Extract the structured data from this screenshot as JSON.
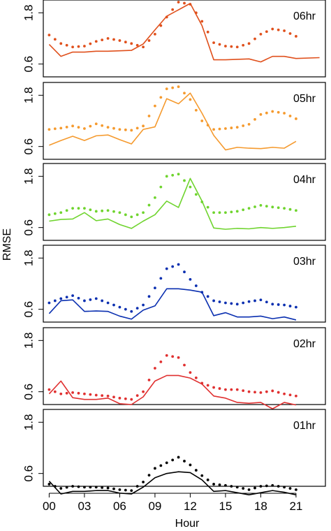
{
  "chart_data": {
    "type": "line",
    "xlabel": "Hour",
    "ylabel": "RMSE",
    "x_tick_labels": [
      "00",
      "03",
      "06",
      "09",
      "12",
      "15",
      "18",
      "21"
    ],
    "x_tick_values": [
      0,
      3,
      6,
      9,
      12,
      15,
      18,
      21
    ],
    "y_tick_labels": [
      "0.6",
      "1.8"
    ],
    "y_tick_values": [
      0.6,
      1.8
    ],
    "ylim": [
      0.3,
      2.1
    ],
    "xlim": [
      -0.5,
      23.5
    ],
    "x": [
      0,
      1,
      2,
      3,
      4,
      5,
      6,
      7,
      8,
      9,
      10,
      11,
      12,
      13,
      14,
      15,
      16,
      17,
      18,
      19,
      20,
      21,
      22,
      23
    ],
    "panels": [
      {
        "label": "06hr",
        "color": "#e0501c",
        "solid": [
          1.06,
          0.78,
          0.88,
          0.88,
          0.9,
          0.9,
          0.91,
          0.92,
          1.07,
          1.4,
          1.72,
          2.02,
          1.5,
          0.7,
          0.7,
          0.71,
          0.72,
          0.65,
          0.78,
          0.78,
          0.73,
          0.75
        ],
        "solid_x": [
          0,
          1,
          2,
          3,
          4,
          5,
          6,
          7,
          8,
          9,
          10,
          12,
          13,
          14,
          15,
          16,
          17,
          18,
          19,
          20,
          21,
          23
        ],
        "dotted": [
          1.28,
          1.08,
          1.0,
          1.02,
          1.13,
          1.2,
          1.15,
          1.08,
          1.0,
          1.3,
          1.7,
          2.05,
          2.0,
          1.6,
          1.1,
          1.02,
          1.0,
          1.08,
          1.3,
          1.42,
          1.38,
          1.25
        ]
      },
      {
        "label": "05hr",
        "color": "#f59a2e",
        "solid": [
          0.63,
          0.74,
          0.84,
          0.74,
          0.85,
          0.87,
          0.76,
          0.66,
          1.0,
          1.06,
          1.72,
          1.6,
          1.85,
          1.38,
          0.86,
          0.52,
          0.58,
          0.56,
          0.55,
          0.58,
          0.56,
          0.72
        ],
        "solid_x": [
          0,
          1,
          2,
          3,
          4,
          5,
          6,
          7,
          8,
          9,
          10,
          11,
          12,
          13,
          14,
          15,
          16,
          17,
          18,
          19,
          20,
          21
        ],
        "dotted": [
          1.0,
          1.03,
          1.08,
          1.02,
          1.13,
          1.05,
          1.0,
          0.98,
          1.08,
          1.55,
          1.95,
          2.0,
          1.7,
          1.2,
          1.0,
          1.02,
          1.05,
          1.12,
          1.35,
          1.42,
          1.38,
          1.25
        ]
      },
      {
        "label": "04hr",
        "color": "#6fd42e",
        "solid": [
          0.75,
          0.79,
          0.8,
          0.95,
          0.76,
          0.8,
          0.67,
          0.58,
          0.75,
          0.9,
          1.22,
          1.07,
          1.75,
          1.22,
          0.59,
          0.56,
          0.58,
          0.57,
          0.6,
          0.58,
          0.6,
          0.63
        ],
        "solid_x": [
          0,
          1,
          2,
          3,
          4,
          5,
          6,
          7,
          8,
          9,
          10,
          11,
          12,
          13,
          14,
          15,
          16,
          17,
          18,
          19,
          20,
          21
        ],
        "dotted": [
          0.9,
          0.95,
          1.05,
          1.05,
          0.98,
          1.0,
          0.95,
          0.85,
          0.95,
          1.3,
          1.8,
          1.85,
          1.55,
          1.2,
          0.95,
          0.95,
          0.98,
          1.05,
          1.12,
          1.08,
          1.05,
          1.0
        ]
      },
      {
        "label": "03hr",
        "color": "#0a2fb0",
        "solid": [
          0.5,
          0.8,
          0.82,
          0.55,
          0.56,
          0.55,
          0.44,
          0.37,
          0.58,
          0.68,
          1.08,
          1.08,
          1.05,
          1.0,
          0.45,
          0.52,
          0.42,
          0.42,
          0.44,
          0.38,
          0.42,
          0.35
        ],
        "solid_x": [
          0,
          1,
          2,
          3,
          4,
          5,
          6,
          7,
          8,
          9,
          10,
          11,
          12,
          13,
          14,
          15,
          16,
          17,
          18,
          19,
          20,
          21
        ],
        "dotted": [
          0.75,
          0.85,
          0.92,
          0.8,
          0.85,
          0.75,
          0.65,
          0.55,
          0.7,
          1.1,
          1.55,
          1.65,
          1.3,
          1.0,
          0.8,
          0.75,
          0.72,
          0.78,
          0.82,
          0.72,
          0.7,
          0.65
        ]
      },
      {
        "label": "02hr",
        "color": "#e03030",
        "solid": [
          0.55,
          0.85,
          0.46,
          0.42,
          0.42,
          0.45,
          0.32,
          0.3,
          0.48,
          0.85,
          0.98,
          0.98,
          0.92,
          0.78,
          0.5,
          0.45,
          0.35,
          0.33,
          0.35,
          0.2,
          0.35,
          0.29
        ],
        "solid_x": [
          0,
          1,
          2,
          3,
          4,
          5,
          6,
          7,
          8,
          9,
          10,
          11,
          12,
          13,
          14,
          15,
          16,
          17,
          18,
          19,
          20,
          21
        ],
        "dotted": [
          0.65,
          0.55,
          0.58,
          0.55,
          0.52,
          0.5,
          0.45,
          0.42,
          0.6,
          1.15,
          1.45,
          1.4,
          1.05,
          0.8,
          0.7,
          0.65,
          0.65,
          0.6,
          0.58,
          0.62,
          0.55,
          0.5
        ]
      },
      {
        "label": "01hr",
        "color": "#000000",
        "solid": [
          0.42,
          0.12,
          0.18,
          0.18,
          0.2,
          0.2,
          0.14,
          0.12,
          0.28,
          0.5,
          0.6,
          0.64,
          0.62,
          0.45,
          0.18,
          0.2,
          0.15,
          0.1,
          0.15,
          0.2,
          0.16,
          0.1
        ],
        "solid_x": [
          0,
          1,
          2,
          3,
          4,
          5,
          6,
          7,
          8,
          9,
          10,
          11,
          12,
          13,
          14,
          15,
          16,
          17,
          18,
          19,
          20,
          21
        ],
        "dotted": [
          0.35,
          0.25,
          0.3,
          0.28,
          0.28,
          0.26,
          0.22,
          0.2,
          0.4,
          0.72,
          0.85,
          0.98,
          0.8,
          0.55,
          0.35,
          0.32,
          0.28,
          0.22,
          0.3,
          0.32,
          0.28,
          0.22
        ]
      }
    ]
  }
}
